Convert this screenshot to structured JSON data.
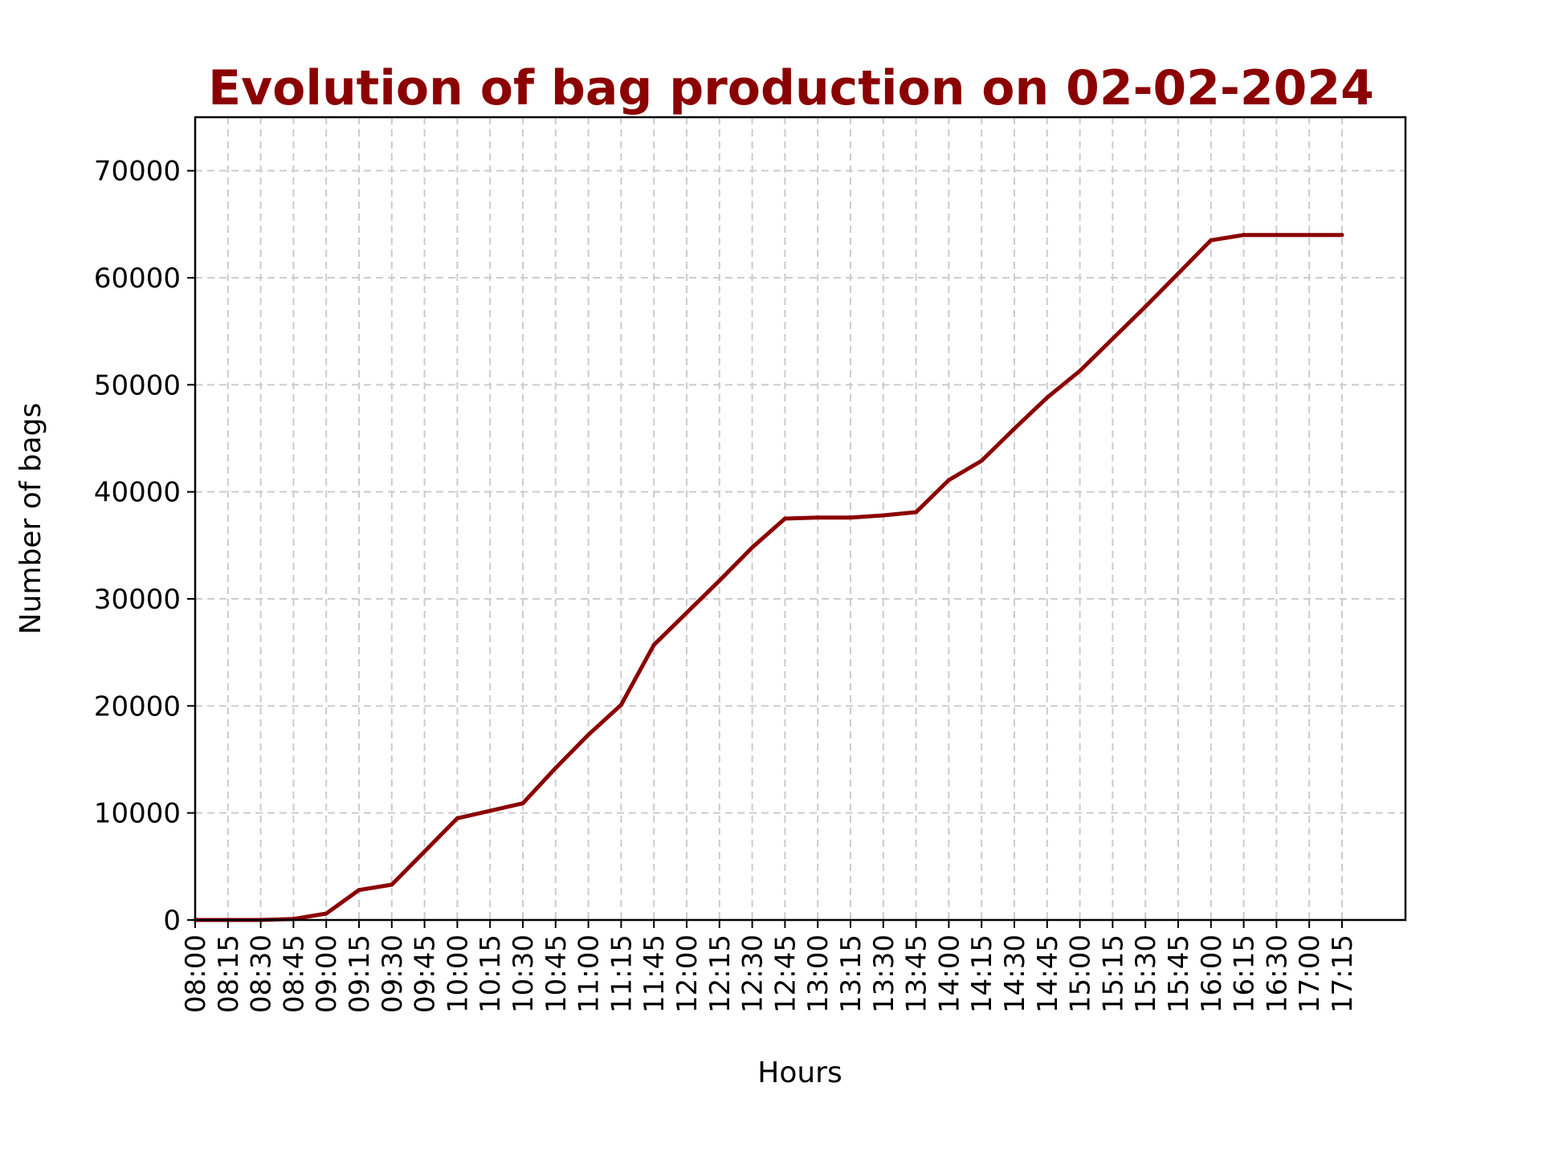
{
  "chart_data": {
    "type": "line",
    "title": "Evolution of bag production on 02-02-2024",
    "xlabel": "Hours",
    "ylabel": "Number of bags",
    "x": [
      "08:00",
      "08:15",
      "08:30",
      "08:45",
      "09:00",
      "09:15",
      "09:30",
      "09:45",
      "10:00",
      "10:15",
      "10:30",
      "10:45",
      "11:00",
      "11:15",
      "11:45",
      "12:00",
      "12:15",
      "12:30",
      "12:45",
      "13:00",
      "13:15",
      "13:30",
      "13:45",
      "14:00",
      "14:15",
      "14:30",
      "14:45",
      "15:00",
      "15:15",
      "15:30",
      "15:45",
      "16:00",
      "16:15",
      "16:30",
      "17:00",
      "17:15"
    ],
    "series": [
      {
        "values": [
          0,
          0,
          0,
          100,
          600,
          2800,
          3300,
          6400,
          9500,
          10200,
          10900,
          14200,
          17300,
          20100,
          25700,
          28700,
          31700,
          34800,
          37500,
          37600,
          37600,
          37800,
          38100,
          41100,
          42900,
          45900,
          48800,
          51300,
          54300,
          57300,
          60400,
          63500,
          64000,
          64000,
          64000,
          64000
        ]
      }
    ],
    "yticks": [
      0,
      10000,
      20000,
      30000,
      40000,
      50000,
      60000,
      70000
    ],
    "ylim": [
      0,
      75000
    ],
    "grid": true,
    "colors": {
      "line": "#8b0000",
      "title": "#8b0000"
    }
  }
}
